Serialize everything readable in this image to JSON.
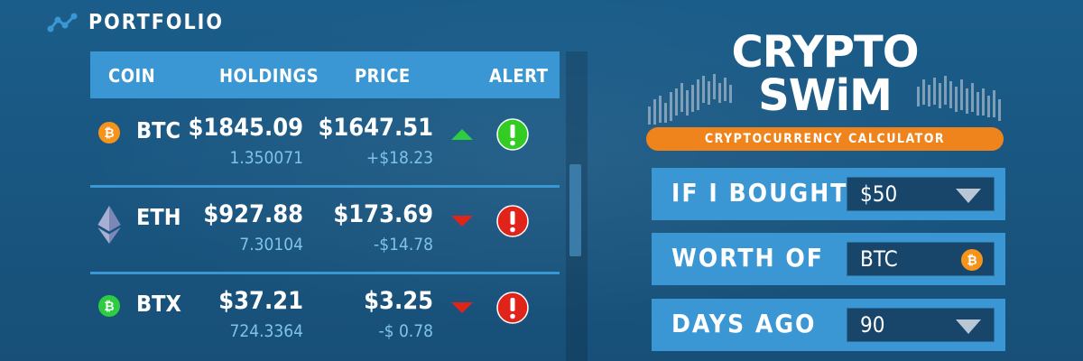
{
  "portfolio": {
    "title": "PORTFOLIO",
    "icon": "chart-line-icon"
  },
  "table": {
    "headers": {
      "coin": "COIN",
      "holdings": "HOLDINGS",
      "price": "PRICE",
      "alert": "ALERT"
    },
    "rows": [
      {
        "coin": "BTC",
        "icon": "bitcoin-icon",
        "icon_color": "#f7931a",
        "holdings": "$1845.09",
        "amount": "1.350071",
        "price": "$1647.51",
        "change": "+$18.23",
        "trend": "up",
        "alert": "ok"
      },
      {
        "coin": "ETH",
        "icon": "ethereum-icon",
        "icon_color": "#8a92b2",
        "holdings": "$927.88",
        "amount": "7.30104",
        "price": "$173.69",
        "change": "-$14.78",
        "trend": "down",
        "alert": "warning"
      },
      {
        "coin": "BTX",
        "icon": "bitcore-icon",
        "icon_color": "#2ecc40",
        "holdings": "$37.21",
        "amount": "724.3364",
        "price": "$3.25",
        "change": "-$ 0.78",
        "trend": "down",
        "alert": "warning"
      }
    ]
  },
  "logo": {
    "line1": "CRYPTO",
    "line2": "SWiM",
    "banner": "CRYPTOCURRENCY CALCULATOR"
  },
  "calculator": {
    "bought_label": "IF I BOUGHT",
    "bought_value": "$50",
    "worth_label": "WORTH OF",
    "worth_value": "BTC",
    "days_label": "DAYS AGO",
    "days_value": "90"
  },
  "colors": {
    "background": "#1a5a86",
    "accent": "#3a97d4",
    "up": "#2ecc40",
    "down": "#e0241b",
    "ok_alert": "#33cc22",
    "warning_alert": "#e0241b",
    "banner": "#f0841c",
    "subtext": "#7fc3ea"
  }
}
